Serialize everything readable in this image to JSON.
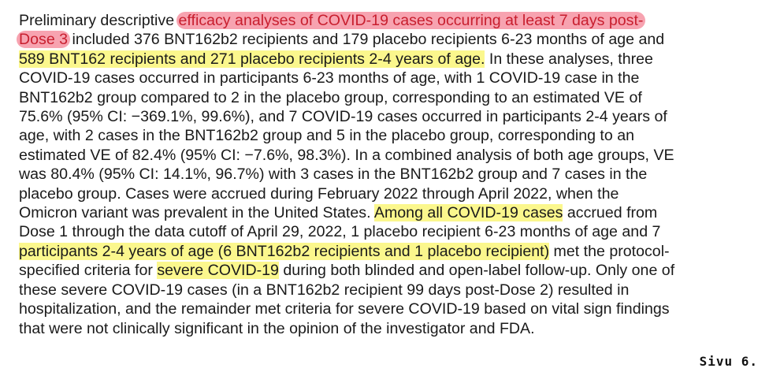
{
  "document": {
    "colors": {
      "yellow_highlight": "#fbf78d",
      "red_highlight": "#f7a3b0",
      "red_text": "#c81e2e",
      "text": "#1a1a1a"
    },
    "lines": [
      [
        {
          "text": "Preliminary descriptive ",
          "hl": ""
        },
        {
          "text": "efficacy analyses of COVID-19 cases occurring at least 7 days post-",
          "hl": "red"
        }
      ],
      [
        {
          "text": "Dose 3",
          "hl": "red"
        },
        {
          "text": " included 376 BNT162b2 recipients and 179 placebo recipients 6-23 months of age and",
          "hl": ""
        }
      ],
      [
        {
          "text": "589 BNT162 recipients and 271 placebo recipients 2-4 years of age.",
          "hl": "yellow"
        },
        {
          "text": " In these analyses, three",
          "hl": ""
        }
      ],
      [
        {
          "text": "COVID-19 cases occurred in participants 6-23 months of age, with 1 COVID-19 case in the",
          "hl": ""
        }
      ],
      [
        {
          "text": "BNT162b2 group compared to 2 in the placebo group, corresponding to an estimated VE of",
          "hl": ""
        }
      ],
      [
        {
          "text": "75.6% (95% CI: −369.1%, 99.6%), and 7 COVID-19 cases occurred in participants 2-4 years of",
          "hl": ""
        }
      ],
      [
        {
          "text": "age, with 2 cases in the BNT162b2 group and 5 in the placebo group, corresponding to an",
          "hl": ""
        }
      ],
      [
        {
          "text": "estimated VE of 82.4% (95% CI: −7.6%, 98.3%). In a combined analysis of both age groups, VE",
          "hl": ""
        }
      ],
      [
        {
          "text": "was 80.4% (95% CI: 14.1%, 96.7%) with 3 cases in the BNT162b2 group and 7 cases in the",
          "hl": ""
        }
      ],
      [
        {
          "text": "placebo group. Cases were accrued during February 2022 through April 2022, when the",
          "hl": ""
        }
      ],
      [
        {
          "text": "Omicron variant was prevalent in the United States. ",
          "hl": ""
        },
        {
          "text": "Among all COVID-19 cases",
          "hl": "yellow"
        },
        {
          "text": " accrued from",
          "hl": ""
        }
      ],
      [
        {
          "text": "Dose 1 through the data cutoff of April 29, 2022, 1 placebo recipient 6-23 months of age and 7",
          "hl": ""
        }
      ],
      [
        {
          "text": "participants 2-4 years of age (6 BNT162b2 recipients and 1 placebo recipient)",
          "hl": "yellow"
        },
        {
          "text": " met the protocol-",
          "hl": ""
        }
      ],
      [
        {
          "text": "specified criteria for ",
          "hl": ""
        },
        {
          "text": "severe COVID-19",
          "hl": "yellow"
        },
        {
          "text": " during both blinded and open-label follow-up. Only one of",
          "hl": ""
        }
      ],
      [
        {
          "text": "these severe COVID-19 cases (in a BNT162b2 recipient 99 days post-Dose 2) resulted in",
          "hl": ""
        }
      ],
      [
        {
          "text": "hospitalization, and the remainder met criteria for severe COVID-19 based on vital sign findings",
          "hl": ""
        }
      ],
      [
        {
          "text": "that were not clinically significant in the opinion of the investigator and FDA.",
          "hl": ""
        }
      ]
    ],
    "page_label": "Sivu 6."
  }
}
